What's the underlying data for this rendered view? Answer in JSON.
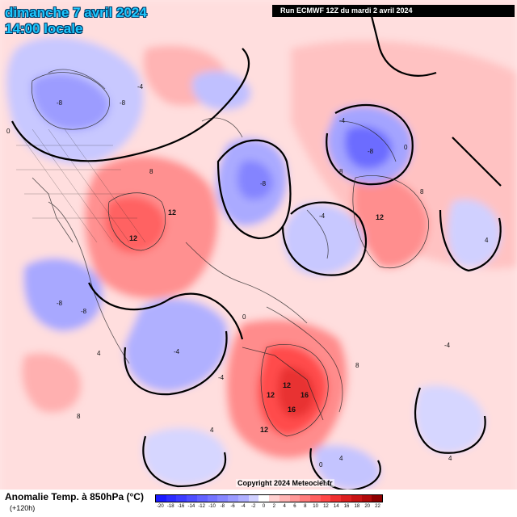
{
  "header": {
    "date": "dimanche 7 avril 2024",
    "time": "14:00 locale",
    "run": "Run ECMWF 12Z du mardi 2 avril 2024"
  },
  "legend": {
    "title": "Anomalie Temp. à 850hPa (°C)",
    "subtitle": "(+120h)",
    "ticks": [
      "-20",
      "-18",
      "-16",
      "-14",
      "-12",
      "-10",
      "-8",
      "-6",
      "-4",
      "-2",
      "0",
      "2",
      "4",
      "6",
      "8",
      "10",
      "12",
      "14",
      "16",
      "18",
      "20",
      "22"
    ],
    "colors": [
      "#1a1aff",
      "#2c2cff",
      "#3c3cff",
      "#4e4eff",
      "#6262ff",
      "#7474ff",
      "#8787ff",
      "#9b9bff",
      "#b0b0ff",
      "#d1d1ff",
      "#ffffff",
      "#ffd1d1",
      "#ffb4b4",
      "#ff9898",
      "#ff7c7c",
      "#ff6060",
      "#ff4848",
      "#f03030",
      "#dd2020",
      "#c81414",
      "#b00a0a",
      "#8c0000"
    ]
  },
  "copyright": "Copyright 2024 Meteociel.fr",
  "map_labels": [
    "-8",
    "-8",
    "-8",
    "-8",
    "-8",
    "-8",
    "-4",
    "-4",
    "-4",
    "-4",
    "-4",
    "-4",
    "12",
    "12",
    "12",
    "12",
    "12",
    "12",
    "16",
    "16",
    "8",
    "8",
    "8",
    "8",
    "8",
    "4",
    "4",
    "4",
    "4",
    "4",
    "0",
    "0",
    "0",
    "0"
  ]
}
